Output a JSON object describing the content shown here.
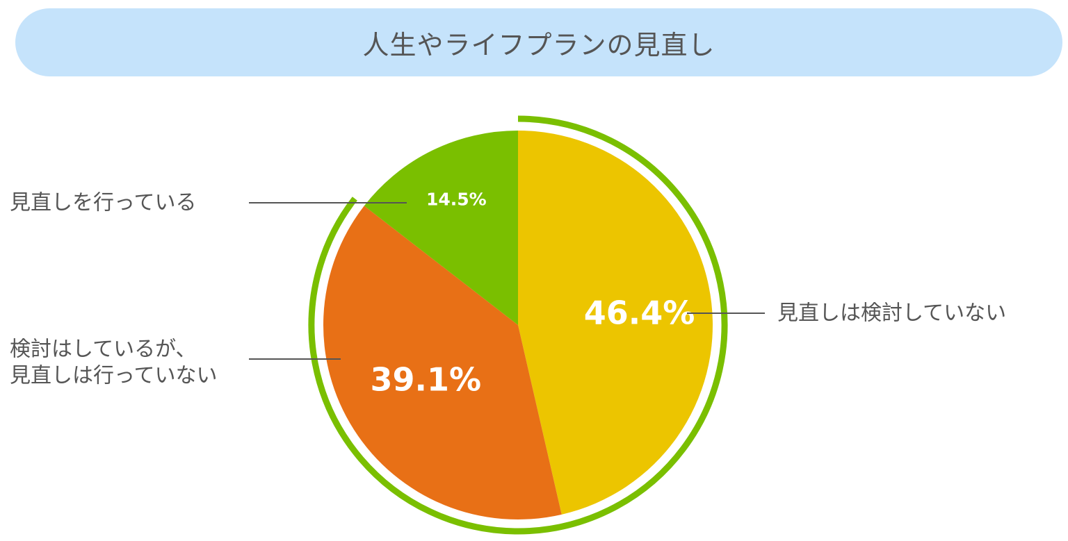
{
  "chart_data": {
    "type": "pie",
    "title": "人生やライフプランの見直し",
    "start_angle_deg": 0,
    "direction": "clockwise",
    "slices": [
      {
        "label": "見直しは検討していない",
        "value": 46.4,
        "value_label": "46.4%",
        "color": "#ecc500"
      },
      {
        "label": "検討はしているが、見直しは行っていない",
        "label_lines": [
          "検討はしているが、",
          "見直しは行っていない"
        ],
        "value": 39.1,
        "value_label": "39.1%",
        "color": "#e87016"
      },
      {
        "label": "見直しを行っている",
        "value": 14.5,
        "value_label": "14.5%",
        "color": "#7abf00"
      }
    ],
    "highlight_ring": {
      "color": "#7abf00",
      "covers": [
        "見直しは検討していない",
        "検討はしているが、見直しは行っていない"
      ]
    },
    "legend_line_color": "#555555"
  }
}
